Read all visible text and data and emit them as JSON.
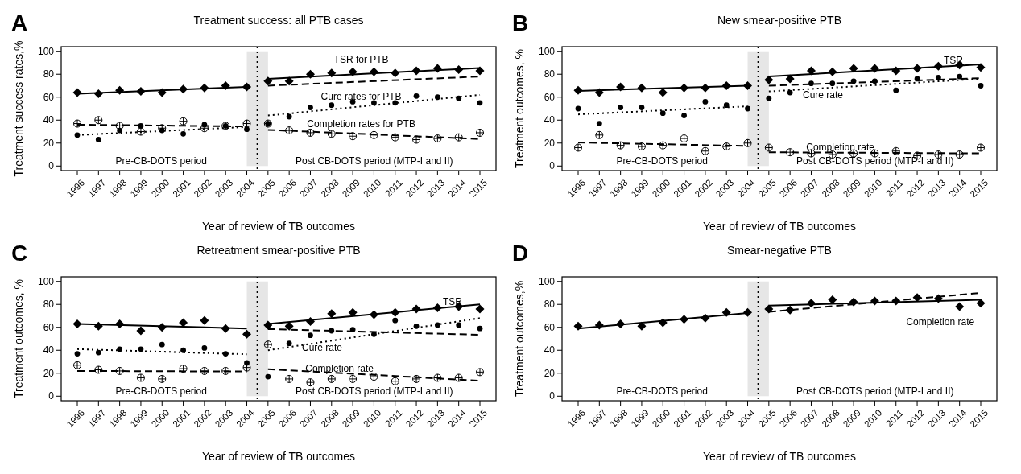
{
  "chart_data": [
    {
      "type": "scatter",
      "title": "Treatment success: all PTB cases",
      "xlabel": "Year of review of TB outcomes",
      "ylabel": "Treatment success rates,%",
      "x": [
        1996,
        1997,
        1998,
        1999,
        2000,
        2001,
        2002,
        2003,
        2004,
        2005,
        2006,
        2007,
        2008,
        2009,
        2010,
        2011,
        2012,
        2013,
        2014,
        2015
      ],
      "xlim": [
        1995.24,
        2015.76
      ],
      "xticks": [
        1996,
        1997,
        1998,
        1999,
        2000,
        2001,
        2002,
        2003,
        2004,
        2005,
        2006,
        2007,
        2008,
        2009,
        2010,
        2011,
        2012,
        2013,
        2014,
        2015
      ],
      "ylim": [
        -4,
        104
      ],
      "yticks": [
        0,
        20,
        40,
        60,
        80,
        100
      ],
      "series": [
        {
          "color": "#000000",
          "marker": "diamond",
          "values": [
            64,
            63,
            66,
            65,
            64,
            67,
            68,
            70,
            69,
            74,
            74,
            80,
            81,
            82,
            82,
            81,
            83,
            85,
            84,
            83
          ]
        },
        {
          "color": "#000000",
          "marker": "circle",
          "values": [
            27,
            23,
            31,
            35,
            31,
            28,
            36,
            35,
            32,
            37,
            43,
            51,
            53,
            56,
            55,
            55,
            61,
            60,
            59,
            55
          ]
        },
        {
          "color": "#000000",
          "marker": "cross",
          "values": [
            37,
            40,
            35,
            30,
            33,
            39,
            33,
            35,
            37,
            37,
            31,
            29,
            28,
            26,
            27,
            25,
            23,
            24,
            25,
            29
          ]
        },
        {
          "type": "line",
          "line_style": "solid",
          "color": "#000000",
          "x": [
            1996,
            2004
          ],
          "values": [
            63,
            69
          ]
        },
        {
          "type": "line",
          "line_style": "solid",
          "color": "#000000",
          "x": [
            2005,
            2015
          ],
          "values": [
            76,
            85.5
          ]
        },
        {
          "type": "line",
          "line_style": "dashed",
          "color": "#000000",
          "x": [
            2005,
            2015
          ],
          "values": [
            70,
            78
          ]
        },
        {
          "type": "line",
          "line_style": "dotted",
          "color": "#000000",
          "x": [
            1996,
            2004
          ],
          "values": [
            27,
            34
          ]
        },
        {
          "type": "line",
          "line_style": "dotted",
          "color": "#000000",
          "x": [
            2005,
            2015
          ],
          "values": [
            44,
            62
          ]
        },
        {
          "type": "line",
          "line_style": "dashed",
          "color": "#000000",
          "x": [
            1996,
            2004
          ],
          "values": [
            36,
            34.5
          ]
        },
        {
          "type": "line",
          "line_style": "dashed",
          "color": "#000000",
          "x": [
            2005,
            2015
          ],
          "values": [
            31.5,
            23.5
          ]
        }
      ],
      "ref_lines": [
        {
          "axis": "x",
          "value": 2004.5,
          "line_style": "dotted",
          "color": "#000000"
        }
      ],
      "bands": [
        {
          "axis": "x",
          "from": 2004,
          "to": 2005,
          "color": "#e6e6e6"
        }
      ],
      "annotations": [
        "A",
        "TSR for PTB",
        "Cure rates for PTB",
        "Completion rates for PTB",
        "Pre-CB-DOTS period",
        "Post CB-DOTS period (MTP-I and II)"
      ]
    },
    {
      "type": "scatter",
      "title": "New smear-positive PTB",
      "xlabel": "Year of review of TB outcomes",
      "ylabel": "Treatment outcomes, %",
      "x": [
        1996,
        1997,
        1998,
        1999,
        2000,
        2001,
        2002,
        2003,
        2004,
        2005,
        2006,
        2007,
        2008,
        2009,
        2010,
        2011,
        2012,
        2013,
        2014,
        2015
      ],
      "xlim": [
        1995.24,
        2015.76
      ],
      "xticks": [
        1996,
        1997,
        1998,
        1999,
        2000,
        2001,
        2002,
        2003,
        2004,
        2005,
        2006,
        2007,
        2008,
        2009,
        2010,
        2011,
        2012,
        2013,
        2014,
        2015
      ],
      "ylim": [
        -4,
        104
      ],
      "yticks": [
        0,
        20,
        40,
        60,
        80,
        100
      ],
      "series": [
        {
          "color": "#000000",
          "marker": "diamond",
          "values": [
            66,
            64,
            69,
            68,
            64,
            68,
            68,
            70,
            70,
            75,
            76,
            83,
            82,
            85,
            85,
            83,
            85,
            87,
            88,
            86
          ]
        },
        {
          "color": "#000000",
          "marker": "circle",
          "values": [
            50,
            37,
            51,
            51,
            46,
            44,
            56,
            53,
            50,
            59,
            64,
            72,
            72,
            74,
            74,
            66,
            76,
            77,
            78,
            70
          ]
        },
        {
          "color": "#000000",
          "marker": "cross",
          "values": [
            16,
            27,
            18,
            17,
            18,
            24,
            13,
            17,
            20,
            16,
            12,
            11,
            10,
            11,
            11,
            13,
            9,
            10,
            10,
            16
          ]
        },
        {
          "type": "line",
          "line_style": "solid",
          "color": "#000000",
          "x": [
            1996,
            2004
          ],
          "values": [
            65.5,
            70
          ]
        },
        {
          "type": "line",
          "line_style": "solid",
          "color": "#000000",
          "x": [
            2005,
            2015
          ],
          "values": [
            78,
            88.5
          ]
        },
        {
          "type": "line",
          "line_style": "dashed",
          "color": "#000000",
          "x": [
            2005,
            2015
          ],
          "values": [
            70,
            76.5
          ]
        },
        {
          "type": "line",
          "line_style": "dotted",
          "color": "#000000",
          "x": [
            1996,
            2004
          ],
          "values": [
            45,
            52
          ]
        },
        {
          "type": "line",
          "line_style": "dotted",
          "color": "#000000",
          "x": [
            2005,
            2015
          ],
          "values": [
            65,
            76
          ]
        },
        {
          "type": "line",
          "line_style": "dashed",
          "color": "#000000",
          "x": [
            1996,
            2004
          ],
          "values": [
            20.5,
            17.5
          ]
        },
        {
          "type": "line",
          "line_style": "dashed",
          "color": "#000000",
          "x": [
            2005,
            2015
          ],
          "values": [
            12,
            11
          ]
        }
      ],
      "ref_lines": [
        {
          "axis": "x",
          "value": 2004.5,
          "line_style": "dotted",
          "color": "#000000"
        }
      ],
      "bands": [
        {
          "axis": "x",
          "from": 2004,
          "to": 2005,
          "color": "#e6e6e6"
        }
      ],
      "annotations": [
        "B",
        "TSR",
        "Cure rate",
        "Completion rate",
        "Pre-CB-DOTS period",
        "Post CB-DOTS period (MTP-I and II)"
      ]
    },
    {
      "type": "scatter",
      "title": "Retreatment smear-positive PTB",
      "xlabel": "Year of review of TB outcomes",
      "ylabel": "Treatment outcomes, %",
      "x": [
        1996,
        1997,
        1998,
        1999,
        2000,
        2001,
        2002,
        2003,
        2004,
        2005,
        2006,
        2007,
        2008,
        2009,
        2010,
        2011,
        2012,
        2013,
        2014,
        2015
      ],
      "xlim": [
        1995.24,
        2015.76
      ],
      "xticks": [
        1996,
        1997,
        1998,
        1999,
        2000,
        2001,
        2002,
        2003,
        2004,
        2005,
        2006,
        2007,
        2008,
        2009,
        2010,
        2011,
        2012,
        2013,
        2014,
        2015
      ],
      "ylim": [
        -4,
        104
      ],
      "yticks": [
        0,
        20,
        40,
        60,
        80,
        100
      ],
      "series": [
        {
          "color": "#000000",
          "marker": "diamond",
          "values": [
            63,
            61,
            63,
            57,
            60,
            64,
            66,
            59,
            54,
            62,
            61,
            65,
            72,
            73,
            71,
            73,
            76,
            77,
            78,
            76
          ]
        },
        {
          "color": "#000000",
          "marker": "circle",
          "values": [
            37,
            38,
            41,
            41,
            45,
            40,
            42,
            37,
            29,
            17,
            46,
            53,
            57,
            58,
            54,
            66,
            61,
            62,
            62,
            59
          ]
        },
        {
          "color": "#000000",
          "marker": "cross",
          "values": [
            27,
            23,
            22,
            16,
            15,
            24,
            22,
            22,
            25,
            45,
            15,
            12,
            15,
            15,
            17,
            13,
            15,
            16,
            16,
            21
          ]
        },
        {
          "type": "line",
          "line_style": "solid",
          "color": "#000000",
          "x": [
            1996,
            2004
          ],
          "values": [
            63,
            59
          ]
        },
        {
          "type": "line",
          "line_style": "solid",
          "color": "#000000",
          "x": [
            2005,
            2015
          ],
          "values": [
            63,
            80
          ]
        },
        {
          "type": "line",
          "line_style": "dashed",
          "color": "#000000",
          "x": [
            2005,
            2015
          ],
          "values": [
            58.5,
            53.5
          ]
        },
        {
          "type": "line",
          "line_style": "dotted",
          "color": "#000000",
          "x": [
            1996,
            2004
          ],
          "values": [
            41,
            36.5
          ]
        },
        {
          "type": "line",
          "line_style": "dotted",
          "color": "#000000",
          "x": [
            2005,
            2015
          ],
          "values": [
            40,
            68
          ]
        },
        {
          "type": "line",
          "line_style": "dashed",
          "color": "#000000",
          "x": [
            1996,
            2004
          ],
          "values": [
            22,
            21.5
          ]
        },
        {
          "type": "line",
          "line_style": "dashed",
          "color": "#000000",
          "x": [
            2005,
            2015
          ],
          "values": [
            23.5,
            13.5
          ]
        }
      ],
      "ref_lines": [
        {
          "axis": "x",
          "value": 2004.5,
          "line_style": "dotted",
          "color": "#000000"
        }
      ],
      "bands": [
        {
          "axis": "x",
          "from": 2004,
          "to": 2005,
          "color": "#e6e6e6"
        }
      ],
      "annotations": [
        "C",
        "TSR",
        "Cure rate",
        "Completion rate",
        "Pre-CB-DOTS period",
        "Post CB-DOTS period (MTP-I and II)"
      ]
    },
    {
      "type": "scatter",
      "title": "Smear-negative PTB",
      "xlabel": "Year of review of TB outcomes",
      "ylabel": "Treatment outcomes,%",
      "x": [
        1996,
        1997,
        1998,
        1999,
        2000,
        2001,
        2002,
        2003,
        2004,
        2005,
        2006,
        2007,
        2008,
        2009,
        2010,
        2011,
        2012,
        2013,
        2014,
        2015
      ],
      "xlim": [
        1995.24,
        2015.76
      ],
      "xticks": [
        1996,
        1997,
        1998,
        1999,
        2000,
        2001,
        2002,
        2003,
        2004,
        2005,
        2006,
        2007,
        2008,
        2009,
        2010,
        2011,
        2012,
        2013,
        2014,
        2015
      ],
      "ylim": [
        -4,
        104
      ],
      "yticks": [
        0,
        20,
        40,
        60,
        80,
        100
      ],
      "series": [
        {
          "color": "#000000",
          "marker": "diamond",
          "values": [
            61,
            62,
            63,
            61,
            64,
            67,
            68,
            73,
            73,
            76,
            75,
            81,
            84,
            82,
            83,
            83,
            86,
            85,
            78,
            81
          ]
        },
        {
          "type": "line",
          "line_style": "solid",
          "color": "#000000",
          "x": [
            1996,
            2004
          ],
          "values": [
            59,
            72.5
          ]
        },
        {
          "type": "line",
          "line_style": "solid",
          "color": "#000000",
          "x": [
            2005,
            2015
          ],
          "values": [
            79,
            84
          ]
        },
        {
          "type": "line",
          "line_style": "dashed",
          "color": "#000000",
          "x": [
            2005,
            2015
          ],
          "values": [
            73.5,
            90
          ]
        }
      ],
      "ref_lines": [
        {
          "axis": "x",
          "value": 2004.5,
          "line_style": "dotted",
          "color": "#000000"
        }
      ],
      "bands": [
        {
          "axis": "x",
          "from": 2004,
          "to": 2005,
          "color": "#e6e6e6"
        }
      ],
      "annotations": [
        "D",
        "Completion rate",
        "Pre-CB-DOTS period",
        "Post CB-DOTS period (MTP-I and II)"
      ]
    }
  ]
}
